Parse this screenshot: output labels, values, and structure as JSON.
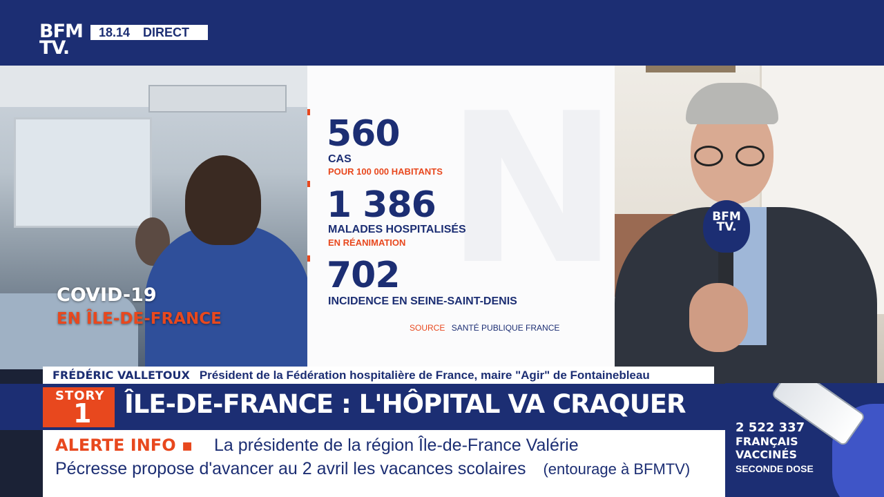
{
  "channel": {
    "logo_line1": "BFM",
    "logo_line2": "TV.",
    "time": "18.14",
    "live_label": "DIRECT"
  },
  "topic": {
    "title": "COVID-19",
    "subtitle": "EN ÎLE-DE-FRANCE"
  },
  "stats": [
    {
      "value": "560",
      "label": "CAS",
      "sublabel": "POUR 100 000 HABITANTS"
    },
    {
      "value": "1 386",
      "label": "MALADES HOSPITALISÉS",
      "sublabel": "EN RÉANIMATION"
    },
    {
      "value": "702",
      "label": "INCIDENCE EN SEINE-SAINT-DENIS",
      "sublabel": ""
    }
  ],
  "source": {
    "label": "SOURCE",
    "value": "SANTÉ PUBLIQUE FRANCE"
  },
  "guest": {
    "name": "FRÉDÉRIC VALLETOUX",
    "role": "Président de la Fédération hospitalière de France, maire \"Agir\" de Fontainebleau",
    "mic_label_1": "BFM",
    "mic_label_2": "TV."
  },
  "story": {
    "label": "STORY",
    "number": "1"
  },
  "headline": "ÎLE-DE-FRANCE : L'HÔPITAL VA CRAQUER",
  "alert": {
    "label": "ALERTE INFO ▪",
    "line1": "La présidente de la région Île-de-France Valérie",
    "line2": "Pécresse propose d'avancer au 2 avril les vacances scolaires",
    "source": "(entourage à BFMTV)"
  },
  "vaccine": {
    "count": "2 522 337",
    "line1": "FRANÇAIS",
    "line2": "VACCINÉS",
    "line3": "SECONDE DOSE"
  },
  "colors": {
    "brand_blue": "#1c2e73",
    "accent_orange": "#e8481e",
    "white": "#ffffff"
  }
}
